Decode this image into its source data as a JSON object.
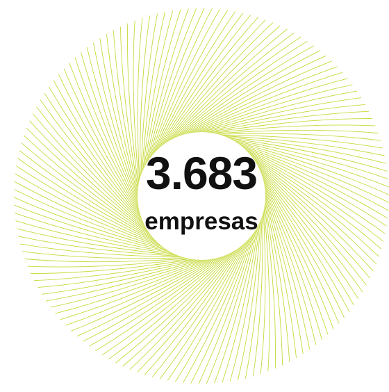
{
  "figure": {
    "value": "3.683",
    "unit": "empresas"
  }
}
